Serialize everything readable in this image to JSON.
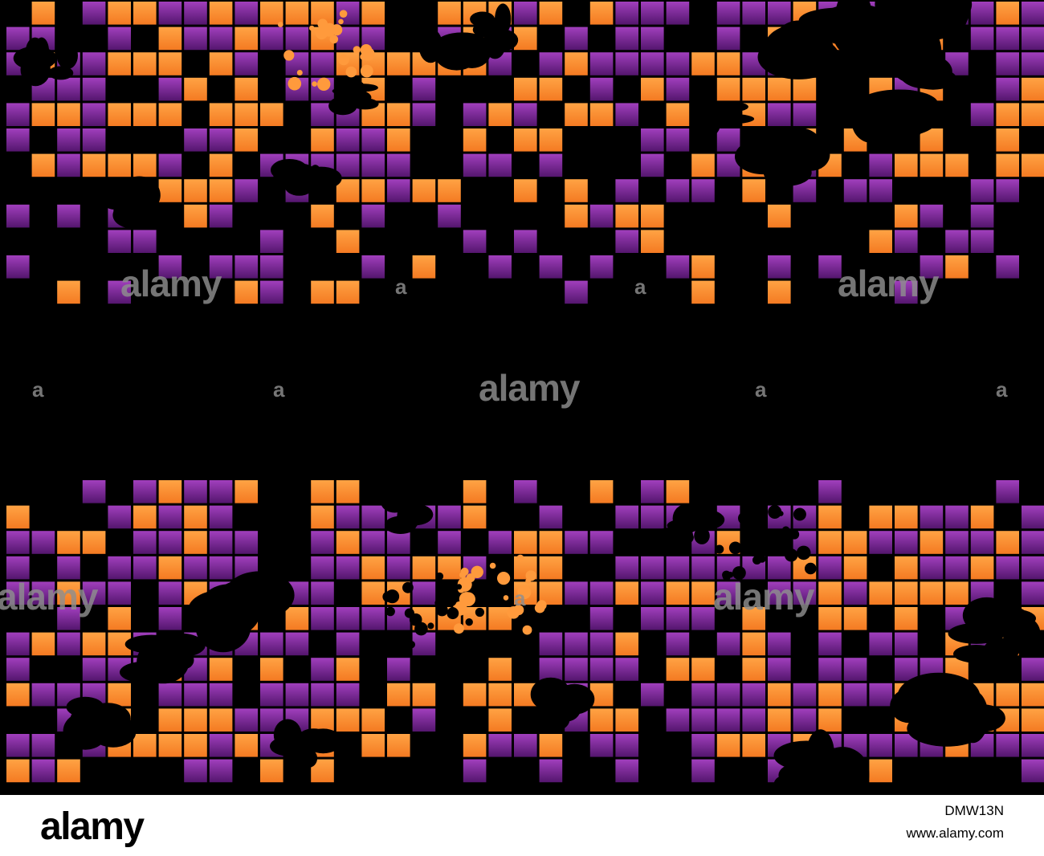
{
  "image": {
    "background_color": "#000000",
    "tile_colors": {
      "orange_light": "#ffa344",
      "orange_dark": "#f47a22",
      "purple_light": "#a13fbd",
      "purple_dark": "#54166e"
    }
  },
  "watermark": {
    "text": "alamy",
    "small": "a"
  },
  "footer": {
    "logo": "alamy",
    "image_id": "DMW13N",
    "url": "www.alamy.com"
  }
}
